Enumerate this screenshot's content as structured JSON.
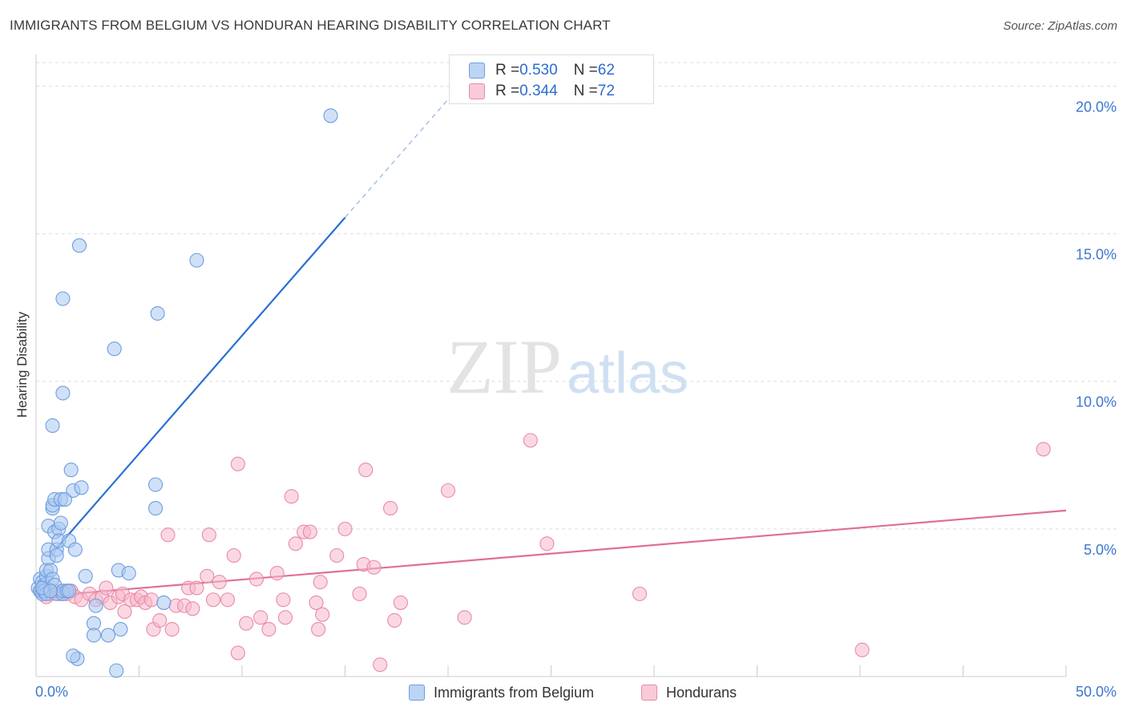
{
  "title": "IMMIGRANTS FROM BELGIUM VS HONDURAN HEARING DISABILITY CORRELATION CHART",
  "source": "Source: ZipAtlas.com",
  "watermark": {
    "zip": "ZIP",
    "atlas": "atlas"
  },
  "colors": {
    "blue_fill": "#a9c8f0",
    "blue_stroke": "#6e9de0",
    "blue_line": "#2a6fd6",
    "pink_fill": "#f5b8ca",
    "pink_stroke": "#e98aa8",
    "pink_line": "#e36d96",
    "axis_label": "#3c77d1",
    "grid": "#dddddd"
  },
  "legend": {
    "series": [
      {
        "r_label": "R = ",
        "r_value": "0.530",
        "n_label": "N = ",
        "n_value": "62"
      },
      {
        "r_label": "R = ",
        "r_value": "0.344",
        "n_label": "N = ",
        "n_value": "72"
      }
    ]
  },
  "chart_data": {
    "type": "scatter",
    "title": "IMMIGRANTS FROM BELGIUM VS HONDURAN HEARING DISABILITY CORRELATION CHART",
    "xlabel": "",
    "ylabel": "Hearing Disability",
    "xlim": [
      0,
      50
    ],
    "ylim": [
      0,
      20.8
    ],
    "x_tick_labels": [
      "0.0%",
      "50.0%"
    ],
    "y_ticks": [
      5,
      10,
      15,
      20
    ],
    "y_tick_labels": [
      "5.0%",
      "10.0%",
      "15.0%",
      "20.0%"
    ],
    "grid": true,
    "series": [
      {
        "name": "Immigrants from Belgium",
        "color": "#a9c8f0",
        "points": [
          [
            0.1,
            3.0
          ],
          [
            0.2,
            2.9
          ],
          [
            0.2,
            3.3
          ],
          [
            0.3,
            2.9
          ],
          [
            0.3,
            3.2
          ],
          [
            0.3,
            2.8
          ],
          [
            0.4,
            3.1
          ],
          [
            0.4,
            2.9
          ],
          [
            0.5,
            3.4
          ],
          [
            0.5,
            3.6
          ],
          [
            0.5,
            2.8
          ],
          [
            0.6,
            4.0
          ],
          [
            0.6,
            4.3
          ],
          [
            0.6,
            5.1
          ],
          [
            0.7,
            3.6
          ],
          [
            0.8,
            3.3
          ],
          [
            0.8,
            5.7
          ],
          [
            0.8,
            5.8
          ],
          [
            0.9,
            6.0
          ],
          [
            0.9,
            4.9
          ],
          [
            0.9,
            3.1
          ],
          [
            1.0,
            4.3
          ],
          [
            1.0,
            4.1
          ],
          [
            1.0,
            2.8
          ],
          [
            1.1,
            5.0
          ],
          [
            1.1,
            4.6
          ],
          [
            1.2,
            5.2
          ],
          [
            1.2,
            6.0
          ],
          [
            1.3,
            2.8
          ],
          [
            1.3,
            2.9
          ],
          [
            1.4,
            6.0
          ],
          [
            1.5,
            2.9
          ],
          [
            1.6,
            4.6
          ],
          [
            1.7,
            7.0
          ],
          [
            1.8,
            6.3
          ],
          [
            1.9,
            4.3
          ],
          [
            2.0,
            0.6
          ],
          [
            2.1,
            14.6
          ],
          [
            2.2,
            6.4
          ],
          [
            2.4,
            3.4
          ],
          [
            1.8,
            0.7
          ],
          [
            2.8,
            1.8
          ],
          [
            2.9,
            2.4
          ],
          [
            2.8,
            1.4
          ],
          [
            3.5,
            1.4
          ],
          [
            4.0,
            3.6
          ],
          [
            4.1,
            1.6
          ],
          [
            4.5,
            3.5
          ],
          [
            3.8,
            11.1
          ],
          [
            3.9,
            0.2
          ],
          [
            1.3,
            12.8
          ],
          [
            1.3,
            9.6
          ],
          [
            0.8,
            8.5
          ],
          [
            5.8,
            6.5
          ],
          [
            5.8,
            5.7
          ],
          [
            5.9,
            12.3
          ],
          [
            6.2,
            2.5
          ],
          [
            7.8,
            14.1
          ],
          [
            14.3,
            19.0
          ],
          [
            0.3,
            3.0
          ],
          [
            0.7,
            2.9
          ],
          [
            1.6,
            2.9
          ]
        ]
      },
      {
        "name": "Hondurans",
        "color": "#f5b8ca",
        "points": [
          [
            0.2,
            2.9
          ],
          [
            0.4,
            3.1
          ],
          [
            0.5,
            2.7
          ],
          [
            0.7,
            2.8
          ],
          [
            0.9,
            2.9
          ],
          [
            1.2,
            2.8
          ],
          [
            1.5,
            2.8
          ],
          [
            1.7,
            2.9
          ],
          [
            1.9,
            2.7
          ],
          [
            2.2,
            2.6
          ],
          [
            2.6,
            2.8
          ],
          [
            2.9,
            2.6
          ],
          [
            3.2,
            2.7
          ],
          [
            3.4,
            3.0
          ],
          [
            3.6,
            2.5
          ],
          [
            4.0,
            2.7
          ],
          [
            4.2,
            2.8
          ],
          [
            4.3,
            2.2
          ],
          [
            4.6,
            2.6
          ],
          [
            4.9,
            2.6
          ],
          [
            5.1,
            2.7
          ],
          [
            5.3,
            2.5
          ],
          [
            5.6,
            2.6
          ],
          [
            5.7,
            1.6
          ],
          [
            6.0,
            1.9
          ],
          [
            6.4,
            4.8
          ],
          [
            6.6,
            1.6
          ],
          [
            6.8,
            2.4
          ],
          [
            7.2,
            2.4
          ],
          [
            7.4,
            3.0
          ],
          [
            7.6,
            2.3
          ],
          [
            7.8,
            3.0
          ],
          [
            8.3,
            3.4
          ],
          [
            8.4,
            4.8
          ],
          [
            8.9,
            3.2
          ],
          [
            9.3,
            2.6
          ],
          [
            9.6,
            4.1
          ],
          [
            9.8,
            0.8
          ],
          [
            9.8,
            7.2
          ],
          [
            10.2,
            1.8
          ],
          [
            10.7,
            3.3
          ],
          [
            10.9,
            2.0
          ],
          [
            11.3,
            1.6
          ],
          [
            11.7,
            3.5
          ],
          [
            12.0,
            2.6
          ],
          [
            12.1,
            2.0
          ],
          [
            12.4,
            6.1
          ],
          [
            12.6,
            4.5
          ],
          [
            13.0,
            4.9
          ],
          [
            13.3,
            4.9
          ],
          [
            13.6,
            2.5
          ],
          [
            13.7,
            1.6
          ],
          [
            13.8,
            3.2
          ],
          [
            13.9,
            2.1
          ],
          [
            14.6,
            4.1
          ],
          [
            15.0,
            5.0
          ],
          [
            15.7,
            2.8
          ],
          [
            15.9,
            3.8
          ],
          [
            16.0,
            7.0
          ],
          [
            16.4,
            3.7
          ],
          [
            16.7,
            0.4
          ],
          [
            17.2,
            5.7
          ],
          [
            17.4,
            1.9
          ],
          [
            17.7,
            2.5
          ],
          [
            20.0,
            6.3
          ],
          [
            20.8,
            2.0
          ],
          [
            24.0,
            8.0
          ],
          [
            24.8,
            4.5
          ],
          [
            29.3,
            2.8
          ],
          [
            40.1,
            0.9
          ],
          [
            48.9,
            7.7
          ],
          [
            8.6,
            2.6
          ]
        ]
      }
    ],
    "trendlines": [
      {
        "series": "Immigrants from Belgium",
        "solid_x": [
          1.0,
          15.0
        ],
        "dashed_x": [
          15.0,
          20.3
        ],
        "slope": 0.8,
        "intercept": 3.55
      },
      {
        "series": "Hondurans",
        "x": [
          0,
          50
        ],
        "slope": 0.0585,
        "intercept": 2.7
      }
    ]
  },
  "bottom_legend": [
    {
      "label": "Immigrants from Belgium"
    },
    {
      "label": "Hondurans"
    }
  ]
}
